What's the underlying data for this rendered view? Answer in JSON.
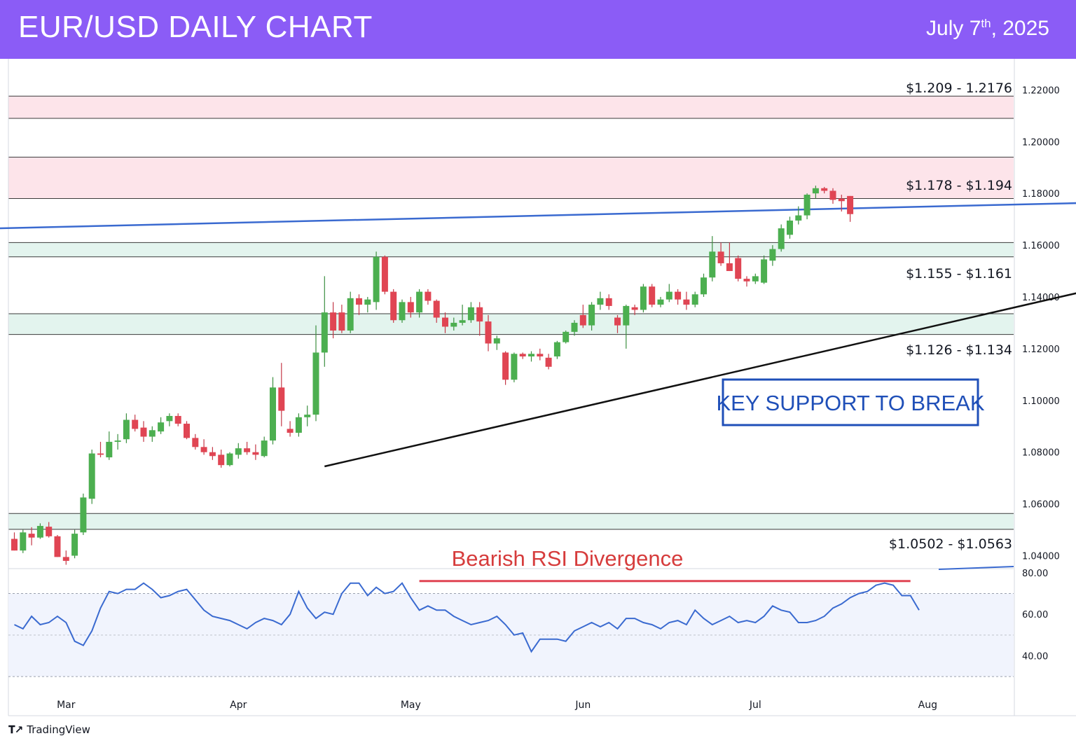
{
  "header": {
    "title": "EUR/USD DAILY CHART",
    "date_main": "July 7",
    "date_sup": "th",
    "date_year": ", 2025",
    "bg_color": "#8b5cf6"
  },
  "footer": {
    "brand": "TradingView",
    "icon": "tradingview-logo-icon"
  },
  "annotations": {
    "callout": "KEY SUPPORT TO BREAK",
    "divergence": "Bearish RSI Divergence"
  },
  "zones": [
    {
      "label": "$1.209 - 1.2176",
      "low": 1.209,
      "high": 1.2176,
      "color": "#fde4ea"
    },
    {
      "label": "$1.178 - $1.194",
      "low": 1.178,
      "high": 1.194,
      "color": "#fde4ea"
    },
    {
      "label": "$1.155 - $1.161",
      "low": 1.1555,
      "high": 1.161,
      "color": "#e3f4ee"
    },
    {
      "label": "$1.126 - $1.134",
      "low": 1.1255,
      "high": 1.1335,
      "color": "#e3f4ee"
    },
    {
      "label": "$1.0502 - $1.0563",
      "low": 1.0502,
      "high": 1.0563,
      "color": "#e3f4ee"
    }
  ],
  "chart_data": {
    "type": "candlestick",
    "title": "EUR/USD DAILY CHART",
    "price_axis": {
      "ticks": [
        "1.22000",
        "1.20000",
        "1.18000",
        "1.16000",
        "1.14000",
        "1.12000",
        "1.10000",
        "1.08000",
        "1.06000",
        "1.04000"
      ],
      "range": [
        1.035,
        1.232
      ]
    },
    "rsi_axis": {
      "ticks": [
        "80.00",
        "60.00",
        "40.00"
      ],
      "range": [
        28,
        82
      ],
      "band": [
        30,
        70
      ]
    },
    "x_labels": [
      {
        "label": "Mar",
        "index": 6
      },
      {
        "label": "Apr",
        "index": 26
      },
      {
        "label": "May",
        "index": 46
      },
      {
        "label": "Jun",
        "index": 66
      },
      {
        "label": "Jul",
        "index": 86
      },
      {
        "label": "Aug",
        "index": 106
      }
    ],
    "candles": [
      [
        1.0465,
        1.049,
        1.042,
        1.042
      ],
      [
        1.042,
        1.05,
        1.041,
        1.049
      ],
      [
        1.0485,
        1.051,
        1.044,
        1.047
      ],
      [
        1.047,
        1.0525,
        1.0465,
        1.0515
      ],
      [
        1.0512,
        1.053,
        1.047,
        1.0475
      ],
      [
        1.0475,
        1.048,
        1.0395,
        1.0395
      ],
      [
        1.0395,
        1.042,
        1.0365,
        1.038
      ],
      [
        1.04,
        1.05,
        1.039,
        1.0485
      ],
      [
        1.049,
        1.064,
        1.048,
        1.0625
      ],
      [
        1.062,
        1.081,
        1.06,
        1.0795
      ],
      [
        1.0795,
        1.084,
        1.078,
        1.079
      ],
      [
        1.078,
        1.088,
        1.077,
        1.084
      ],
      [
        1.084,
        1.087,
        1.081,
        1.0845
      ],
      [
        1.085,
        1.095,
        1.0835,
        1.0925
      ],
      [
        1.0925,
        1.0945,
        1.088,
        1.089
      ],
      [
        1.0895,
        1.092,
        1.084,
        1.086
      ],
      [
        1.086,
        1.09,
        1.084,
        1.0885
      ],
      [
        1.088,
        1.0935,
        1.087,
        1.0915
      ],
      [
        1.092,
        1.095,
        1.09,
        1.094
      ],
      [
        1.094,
        1.095,
        1.09,
        1.091
      ],
      [
        1.091,
        1.092,
        1.085,
        1.0855
      ],
      [
        1.0855,
        1.087,
        1.081,
        1.082
      ],
      [
        1.082,
        1.085,
        1.079,
        1.08
      ],
      [
        1.08,
        1.082,
        1.077,
        1.0785
      ],
      [
        1.079,
        1.081,
        1.074,
        1.075
      ],
      [
        1.075,
        1.08,
        1.0745,
        1.0795
      ],
      [
        1.079,
        1.0835,
        1.0775,
        1.0815
      ],
      [
        1.0815,
        1.084,
        1.079,
        1.08
      ],
      [
        1.08,
        1.083,
        1.077,
        1.079
      ],
      [
        1.0785,
        1.086,
        1.078,
        1.0845
      ],
      [
        1.0845,
        1.109,
        1.083,
        1.105
      ],
      [
        1.105,
        1.1145,
        1.09,
        1.096
      ],
      [
        1.089,
        1.092,
        1.086,
        1.0875
      ],
      [
        1.0875,
        1.095,
        1.086,
        1.0935
      ],
      [
        1.0935,
        1.098,
        1.09,
        1.0945
      ],
      [
        1.0945,
        1.129,
        1.092,
        1.1185
      ],
      [
        1.1185,
        1.148,
        1.113,
        1.134
      ],
      [
        1.134,
        1.138,
        1.124,
        1.127
      ],
      [
        1.134,
        1.137,
        1.126,
        1.127
      ],
      [
        1.127,
        1.142,
        1.126,
        1.1395
      ],
      [
        1.1395,
        1.141,
        1.133,
        1.137
      ],
      [
        1.137,
        1.14,
        1.134,
        1.139
      ],
      [
        1.138,
        1.1575,
        1.135,
        1.1555
      ],
      [
        1.1555,
        1.156,
        1.141,
        1.142
      ],
      [
        1.142,
        1.143,
        1.13,
        1.131
      ],
      [
        1.131,
        1.139,
        1.13,
        1.138
      ],
      [
        1.138,
        1.14,
        1.132,
        1.134
      ],
      [
        1.134,
        1.143,
        1.132,
        1.142
      ],
      [
        1.142,
        1.143,
        1.137,
        1.1385
      ],
      [
        1.1385,
        1.139,
        1.13,
        1.132
      ],
      [
        1.132,
        1.134,
        1.126,
        1.1285
      ],
      [
        1.1285,
        1.132,
        1.127,
        1.13
      ],
      [
        1.13,
        1.137,
        1.129,
        1.131
      ],
      [
        1.131,
        1.138,
        1.13,
        1.136
      ],
      [
        1.136,
        1.138,
        1.125,
        1.1305
      ],
      [
        1.1305,
        1.133,
        1.119,
        1.122
      ],
      [
        1.122,
        1.125,
        1.1195,
        1.124
      ],
      [
        1.1185,
        1.119,
        1.106,
        1.108
      ],
      [
        1.108,
        1.1185,
        1.107,
        1.118
      ],
      [
        1.118,
        1.1185,
        1.116,
        1.117
      ],
      [
        1.117,
        1.119,
        1.115,
        1.118
      ],
      [
        1.118,
        1.12,
        1.1155,
        1.117
      ],
      [
        1.1165,
        1.118,
        1.112,
        1.113
      ],
      [
        1.117,
        1.123,
        1.116,
        1.1225
      ],
      [
        1.1225,
        1.127,
        1.122,
        1.1265
      ],
      [
        1.1265,
        1.131,
        1.125,
        1.13
      ],
      [
        1.133,
        1.137,
        1.128,
        1.129
      ],
      [
        1.129,
        1.138,
        1.127,
        1.137
      ],
      [
        1.137,
        1.142,
        1.135,
        1.1395
      ],
      [
        1.1395,
        1.141,
        1.135,
        1.1365
      ],
      [
        1.132,
        1.133,
        1.126,
        1.129
      ],
      [
        1.129,
        1.137,
        1.12,
        1.1365
      ],
      [
        1.136,
        1.137,
        1.133,
        1.135
      ],
      [
        1.135,
        1.145,
        1.134,
        1.144
      ],
      [
        1.144,
        1.145,
        1.136,
        1.137
      ],
      [
        1.137,
        1.14,
        1.136,
        1.139
      ],
      [
        1.139,
        1.145,
        1.138,
        1.142
      ],
      [
        1.142,
        1.143,
        1.137,
        1.139
      ],
      [
        1.139,
        1.142,
        1.135,
        1.137
      ],
      [
        1.137,
        1.142,
        1.136,
        1.141
      ],
      [
        1.141,
        1.149,
        1.14,
        1.1475
      ],
      [
        1.1475,
        1.1635,
        1.146,
        1.1575
      ],
      [
        1.1575,
        1.161,
        1.152,
        1.153
      ],
      [
        1.153,
        1.161,
        1.15,
        1.15
      ],
      [
        1.155,
        1.156,
        1.146,
        1.147
      ],
      [
        1.147,
        1.148,
        1.144,
        1.146
      ],
      [
        1.146,
        1.149,
        1.145,
        1.148
      ],
      [
        1.1455,
        1.156,
        1.145,
        1.1545
      ],
      [
        1.154,
        1.16,
        1.152,
        1.1585
      ],
      [
        1.1585,
        1.168,
        1.1575,
        1.1665
      ],
      [
        1.164,
        1.171,
        1.1625,
        1.1695
      ],
      [
        1.1695,
        1.175,
        1.168,
        1.1715
      ],
      [
        1.1715,
        1.18,
        1.17,
        1.1795
      ],
      [
        1.18,
        1.183,
        1.178,
        1.182
      ],
      [
        1.182,
        1.1825,
        1.18,
        1.181
      ],
      [
        1.181,
        1.182,
        1.176,
        1.1775
      ],
      [
        1.178,
        1.1795,
        1.173,
        1.177
      ],
      [
        1.179,
        1.179,
        1.169,
        1.172
      ]
    ],
    "trendlines": [
      {
        "name": "rising-support",
        "points": [
          [
            36,
            1.0745
          ],
          [
            145.5,
            1.1585
          ]
        ],
        "color": "#111111"
      },
      {
        "name": "resistance-line",
        "points": [
          [
            -2,
            1.1665
          ],
          [
            178,
            1.1805
          ]
        ],
        "color": "#3a6ad0"
      }
    ],
    "rsi": [
      55,
      53,
      59,
      55,
      56,
      59,
      56,
      47,
      45,
      52,
      63,
      71,
      70,
      72,
      72,
      75,
      72,
      68,
      69,
      71,
      72,
      67,
      62,
      59,
      58,
      57,
      55,
      53,
      56,
      58,
      57,
      55,
      60,
      71,
      63,
      58,
      61,
      60,
      70,
      75,
      75,
      69,
      73,
      70,
      71,
      75,
      68,
      62,
      64,
      62,
      62,
      59,
      57,
      55,
      56,
      57,
      59,
      55,
      50,
      51,
      42,
      48,
      48,
      48,
      47,
      52,
      54,
      56,
      54,
      56,
      53,
      58,
      58,
      56,
      55,
      53,
      56,
      57,
      55,
      62,
      58,
      55,
      57,
      59,
      56,
      57,
      56,
      59,
      64,
      62,
      61,
      56,
      56,
      57,
      59,
      63,
      65,
      68,
      70,
      71,
      74,
      75,
      74,
      69,
      69,
      62
    ],
    "rsi_divergence": {
      "from_index": 47,
      "to_index": 104,
      "level": 76
    }
  }
}
